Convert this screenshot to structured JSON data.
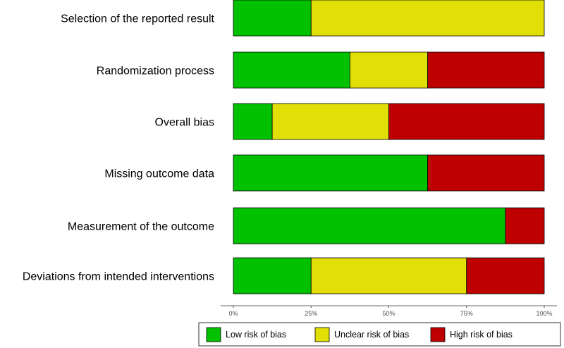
{
  "chart_data": {
    "type": "bar",
    "orientation": "horizontal",
    "stacked": true,
    "percent": true,
    "categories": [
      "Selection of the reported result",
      "Randomization process",
      "Overall bias",
      "Missing outcome data",
      "Measurement of the outcome",
      "Deviations from intended interventions"
    ],
    "series": [
      {
        "name": "Low risk of bias",
        "color": "#02C100",
        "values": [
          25,
          37.5,
          12.5,
          62.5,
          87.5,
          25
        ]
      },
      {
        "name": "Unclear risk of bias",
        "color": "#E2DF07",
        "values": [
          75,
          25,
          37.5,
          0,
          0,
          50
        ]
      },
      {
        "name": "High risk of bias",
        "color": "#BF0000",
        "values": [
          0,
          37.5,
          50,
          37.5,
          12.5,
          25
        ]
      }
    ],
    "x_ticks": [
      "0%",
      "25%",
      "50%",
      "75%",
      "100%"
    ],
    "xlim": [
      0,
      100
    ],
    "title": "",
    "xlabel": "",
    "ylabel": "",
    "grid": false,
    "legend_position": "bottom"
  }
}
